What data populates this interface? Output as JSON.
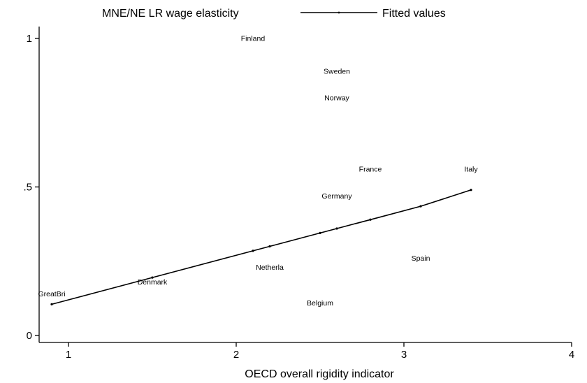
{
  "chart_data": {
    "type": "scatter",
    "title": "",
    "xlabel": "OECD overall rigidity indicator",
    "ylabel": "",
    "xlim": [
      0.85,
      4.05
    ],
    "ylim": [
      -0.02,
      1.04
    ],
    "xticks": [
      1,
      2,
      3,
      4
    ],
    "xtick_labels": [
      "1",
      "2",
      "3",
      "4"
    ],
    "yticks": [
      0,
      0.5,
      1
    ],
    "ytick_labels": [
      "0",
      ".5",
      "1"
    ],
    "grid": false,
    "legend": {
      "placement": "top",
      "entries": [
        {
          "label": "MNE/NE LR wage elasticity",
          "marker": "label"
        },
        {
          "label": "Fitted values",
          "marker": "line"
        }
      ]
    },
    "series": [
      {
        "name": "MNE/NE LR wage elasticity",
        "kind": "labeled-points",
        "points": [
          {
            "label": "Finland",
            "x": 2.1,
            "y": 1.0
          },
          {
            "label": "Sweden",
            "x": 2.6,
            "y": 0.89
          },
          {
            "label": "Norway",
            "x": 2.6,
            "y": 0.8
          },
          {
            "label": "France",
            "x": 2.8,
            "y": 0.56
          },
          {
            "label": "Italy",
            "x": 3.4,
            "y": 0.56
          },
          {
            "label": "Germany",
            "x": 2.6,
            "y": 0.47
          },
          {
            "label": "Spain",
            "x": 3.1,
            "y": 0.26
          },
          {
            "label": "Netherla",
            "x": 2.2,
            "y": 0.23
          },
          {
            "label": "Denmark",
            "x": 1.5,
            "y": 0.18
          },
          {
            "label": "GreatBri",
            "x": 0.9,
            "y": 0.14
          },
          {
            "label": "Belgium",
            "x": 2.5,
            "y": 0.11
          }
        ]
      },
      {
        "name": "Fitted values",
        "kind": "line",
        "points": [
          {
            "x": 0.9,
            "y": 0.105
          },
          {
            "x": 1.5,
            "y": 0.195
          },
          {
            "x": 2.1,
            "y": 0.285
          },
          {
            "x": 2.2,
            "y": 0.3
          },
          {
            "x": 2.5,
            "y": 0.345
          },
          {
            "x": 2.6,
            "y": 0.36
          },
          {
            "x": 2.8,
            "y": 0.39
          },
          {
            "x": 3.1,
            "y": 0.435
          },
          {
            "x": 3.4,
            "y": 0.49
          }
        ]
      }
    ]
  }
}
